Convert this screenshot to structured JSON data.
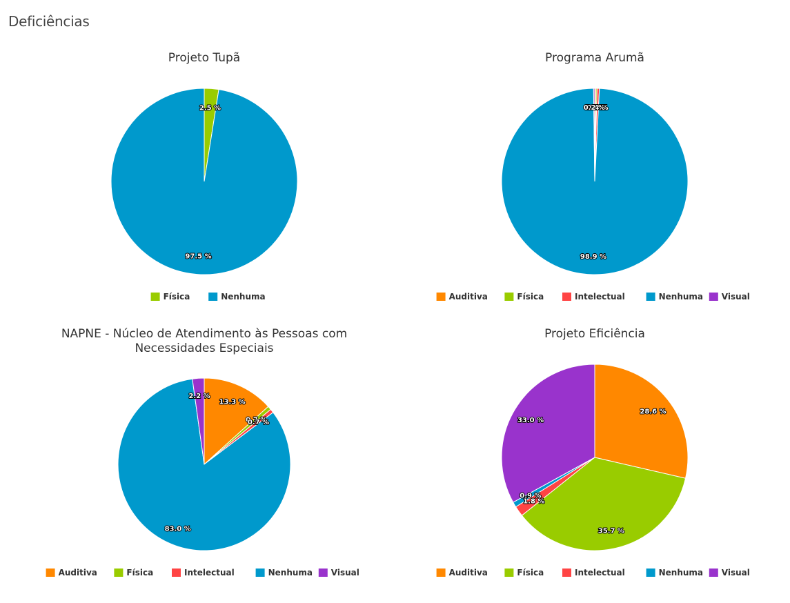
{
  "page": {
    "heading": "Deficiências"
  },
  "colors": {
    "Auditiva": "#ff8800",
    "Física": "#99cc00",
    "Intelectual": "#ff4444",
    "Nenhuma": "#0099cc",
    "Visual": "#9933cc"
  },
  "chart_data": [
    {
      "type": "pie",
      "title": [
        "Projeto Tupã"
      ],
      "legend": [
        "Física",
        "Nenhuma"
      ],
      "slices": [
        {
          "name": "Física",
          "value": 2.5,
          "label": "2.5 %"
        },
        {
          "name": "Nenhuma",
          "value": 97.5,
          "label": "97.5 %"
        }
      ]
    },
    {
      "type": "pie",
      "title": [
        "Programa Arumã"
      ],
      "legend": [
        "Auditiva",
        "Física",
        "Intelectual",
        "Nenhuma",
        "Visual"
      ],
      "slices": [
        {
          "name": "Auditiva",
          "value": 0.2,
          "label": "0.2 %"
        },
        {
          "name": "Física",
          "value": 0.2,
          "label": "0.2 %"
        },
        {
          "name": "Intelectual",
          "value": 0.4,
          "label": "0.4 %"
        },
        {
          "name": "Nenhuma",
          "value": 98.9,
          "label": "98.9 %"
        },
        {
          "name": "Visual",
          "value": 0.2,
          "label": "0.2 %"
        }
      ]
    },
    {
      "type": "pie",
      "title": [
        "NAPNE - Núcleo de Atendimento às Pessoas com",
        "Necessidades Especiais"
      ],
      "legend": [
        "Auditiva",
        "Física",
        "Intelectual",
        "Nenhuma",
        "Visual"
      ],
      "slices": [
        {
          "name": "Auditiva",
          "value": 13.3,
          "label": "13.3 %"
        },
        {
          "name": "Física",
          "value": 0.7,
          "label": "0.7 %"
        },
        {
          "name": "Intelectual",
          "value": 0.7,
          "label": "0.7 %"
        },
        {
          "name": "Nenhuma",
          "value": 83.0,
          "label": "83.0 %"
        },
        {
          "name": "Visual",
          "value": 2.2,
          "label": "2.2 %"
        }
      ]
    },
    {
      "type": "pie",
      "title": [
        "Projeto Eficiência"
      ],
      "legend": [
        "Auditiva",
        "Física",
        "Intelectual",
        "Nenhuma",
        "Visual"
      ],
      "slices": [
        {
          "name": "Auditiva",
          "value": 28.6,
          "label": "28.6 %"
        },
        {
          "name": "Física",
          "value": 35.7,
          "label": "35.7 %"
        },
        {
          "name": "Intelectual",
          "value": 1.8,
          "label": "1.8 %"
        },
        {
          "name": "Nenhuma",
          "value": 0.9,
          "label": "0.9 %"
        },
        {
          "name": "Visual",
          "value": 33.0,
          "label": "33.0 %"
        }
      ]
    }
  ]
}
